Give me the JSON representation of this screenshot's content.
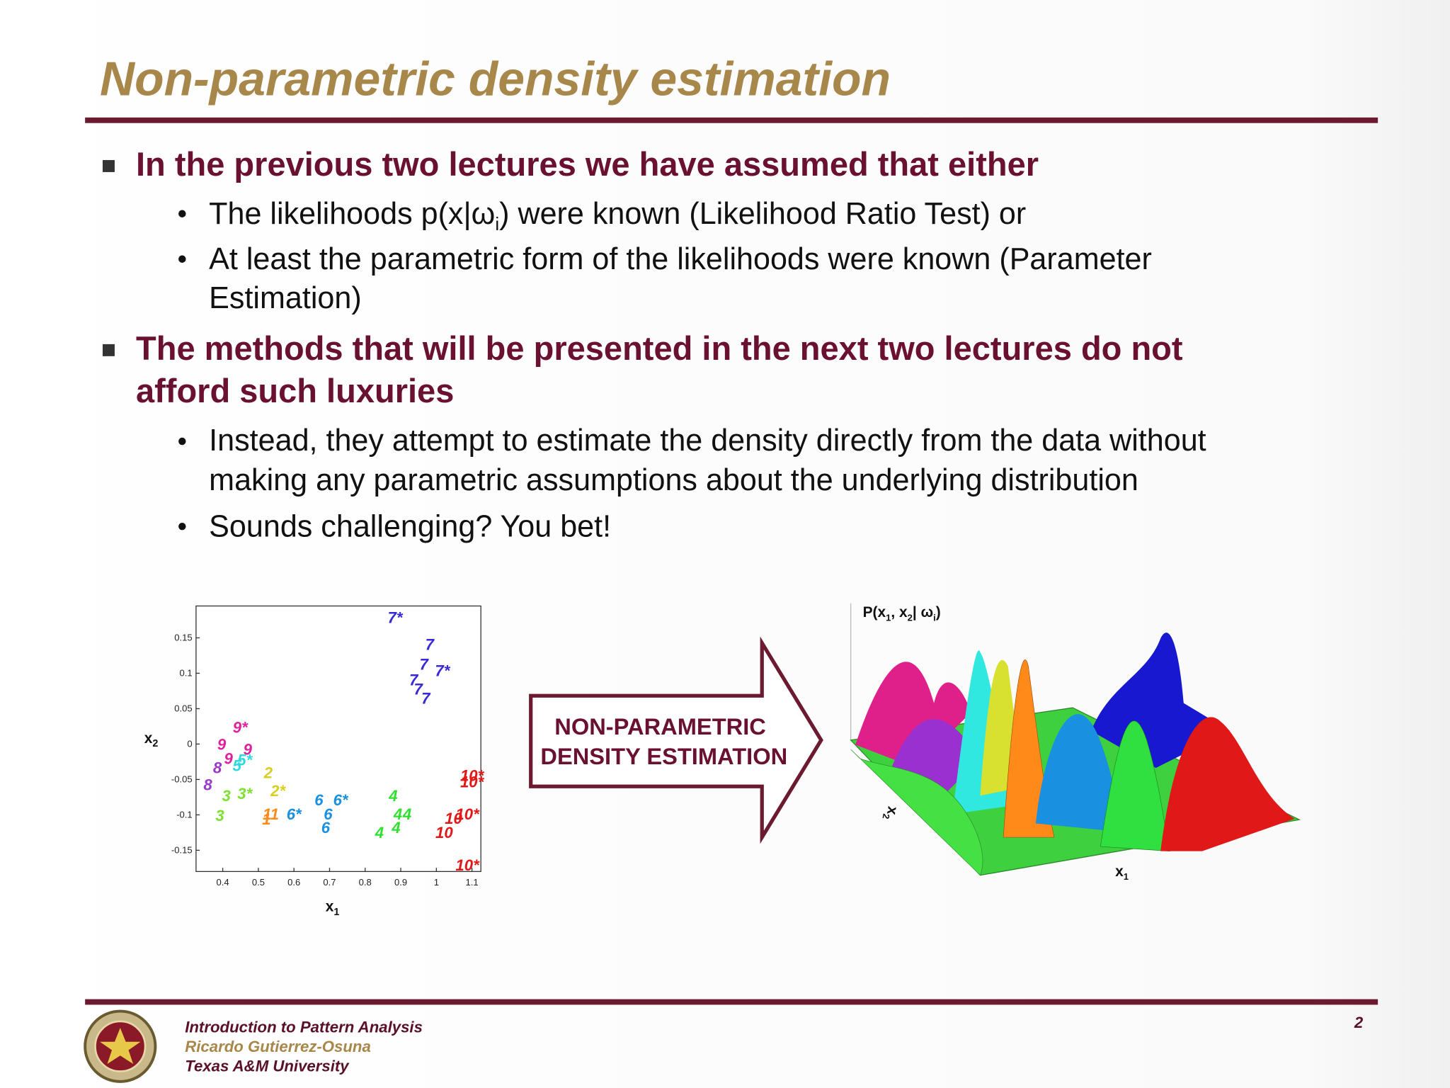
{
  "header": {
    "title": "Non-parametric density estimation"
  },
  "bullets": [
    {
      "lines": [
        "In the previous two lectures we have assumed that either"
      ],
      "sub": [
        {
          "parts": [
            "The likelihoods p(x|ω",
            "i",
            ") were known (Likelihood Ratio Test) or"
          ]
        },
        {
          "lines": [
            "At least the parametric form of the likelihoods were known (Parameter",
            "Estimation)"
          ]
        }
      ]
    },
    {
      "lines": [
        "The methods that will be presented in the next two lectures do not",
        "afford such luxuries"
      ],
      "sub": [
        {
          "lines": [
            "Instead, they attempt to estimate the density directly from the data without",
            "making any parametric assumptions about the underlying distribution"
          ]
        },
        {
          "lines": [
            "Sounds challenging? You bet!"
          ]
        }
      ]
    }
  ],
  "scatter": {
    "type": "scatter",
    "xlabel": "x",
    "xlabel_sub": "1",
    "ylabel": "x",
    "ylabel_sub": "2",
    "xlim": [
      0.325,
      1.125
    ],
    "ylim": [
      -0.18,
      0.195
    ],
    "xticks": [
      0.4,
      0.5,
      0.6,
      0.7,
      0.8,
      0.9,
      1,
      1.1
    ],
    "yticks": [
      0.15,
      0.1,
      0.05,
      0,
      -0.05,
      -0.1,
      -0.15
    ],
    "points": [
      {
        "label": "7*",
        "x": 0.884,
        "y": 0.179,
        "color": "#3a2ad6"
      },
      {
        "label": "7",
        "x": 0.981,
        "y": 0.141,
        "color": "#3a2ad6"
      },
      {
        "label": "7",
        "x": 0.965,
        "y": 0.113,
        "color": "#3a2ad6"
      },
      {
        "label": "7",
        "x": 0.936,
        "y": 0.091,
        "color": "#3a2ad6"
      },
      {
        "label": "7",
        "x": 0.949,
        "y": 0.078,
        "color": "#3a2ad6"
      },
      {
        "label": "7",
        "x": 0.97,
        "y": 0.065,
        "color": "#3a2ad6"
      },
      {
        "label": "7*",
        "x": 1.017,
        "y": 0.104,
        "color": "#3a2ad6"
      },
      {
        "label": "9*",
        "x": 0.449,
        "y": 0.024,
        "color": "#e020a0"
      },
      {
        "label": "9",
        "x": 0.47,
        "y": -0.007,
        "color": "#e020a0"
      },
      {
        "label": "9",
        "x": 0.397,
        "y": 0.0,
        "color": "#e020a0"
      },
      {
        "label": "9",
        "x": 0.416,
        "y": -0.02,
        "color": "#e020a0"
      },
      {
        "label": "8",
        "x": 0.358,
        "y": -0.057,
        "color": "#9a3ac8"
      },
      {
        "label": "8",
        "x": 0.385,
        "y": -0.033,
        "color": "#9a3ac8"
      },
      {
        "label": "5",
        "x": 0.44,
        "y": -0.03,
        "color": "#30d8e0"
      },
      {
        "label": "5*",
        "x": 0.462,
        "y": -0.022,
        "color": "#30d8e0"
      },
      {
        "label": "3",
        "x": 0.392,
        "y": -0.101,
        "color": "#7ee030"
      },
      {
        "label": "3",
        "x": 0.41,
        "y": -0.073,
        "color": "#7ee030"
      },
      {
        "label": "3*",
        "x": 0.462,
        "y": -0.07,
        "color": "#7ee030"
      },
      {
        "label": "2",
        "x": 0.528,
        "y": -0.04,
        "color": "#d8d020"
      },
      {
        "label": "2*",
        "x": 0.555,
        "y": -0.066,
        "color": "#d8d020"
      },
      {
        "label": "1",
        "x": 0.523,
        "y": -0.106,
        "color": "#ff8a1a"
      },
      {
        "label": "11",
        "x": 0.535,
        "y": -0.099,
        "color": "#ff8a1a"
      },
      {
        "label": "6*",
        "x": 0.6,
        "y": -0.099,
        "color": "#1a90e0"
      },
      {
        "label": "6",
        "x": 0.67,
        "y": -0.079,
        "color": "#1a90e0"
      },
      {
        "label": "6",
        "x": 0.696,
        "y": -0.099,
        "color": "#1a90e0"
      },
      {
        "label": "6",
        "x": 0.689,
        "y": -0.118,
        "color": "#1a90e0"
      },
      {
        "label": "6*",
        "x": 0.731,
        "y": -0.079,
        "color": "#1a90e0"
      },
      {
        "label": "4",
        "x": 0.84,
        "y": -0.125,
        "color": "#30e030"
      },
      {
        "label": "4",
        "x": 0.879,
        "y": -0.073,
        "color": "#30e030"
      },
      {
        "label": "4",
        "x": 0.892,
        "y": -0.099,
        "color": "#30e030"
      },
      {
        "label": "4",
        "x": 0.887,
        "y": -0.118,
        "color": "#30e030"
      },
      {
        "label": "4",
        "x": 0.918,
        "y": -0.099,
        "color": "#30e030"
      },
      {
        "label": "10*",
        "x": 1.1,
        "y": -0.044,
        "color": "#e01818"
      },
      {
        "label": "10*",
        "x": 1.1,
        "y": -0.053,
        "color": "#e01818"
      },
      {
        "label": "10",
        "x": 1.048,
        "y": -0.105,
        "color": "#e01818"
      },
      {
        "label": "10",
        "x": 1.022,
        "y": -0.125,
        "color": "#e01818"
      },
      {
        "label": "10*",
        "x": 1.087,
        "y": -0.099,
        "color": "#e01818"
      },
      {
        "label": "10*",
        "x": 1.087,
        "y": -0.171,
        "color": "#e01818"
      }
    ]
  },
  "arrow": {
    "lines": [
      "NON-PARAMETRIC",
      "DENSITY ESTIMATION"
    ]
  },
  "surface": {
    "zlabel_parts": [
      "P(x",
      "1",
      ", x",
      "2",
      "| ω",
      "i",
      ")"
    ],
    "xlabel": "x",
    "xlabel_sub": "1",
    "ylabel": "x",
    "ylabel_sub": "2"
  },
  "footer": {
    "course": "Introduction to Pattern Analysis",
    "author": "Ricardo Gutierrez-Osuna",
    "university": "Texas A&M University",
    "page": "2"
  }
}
